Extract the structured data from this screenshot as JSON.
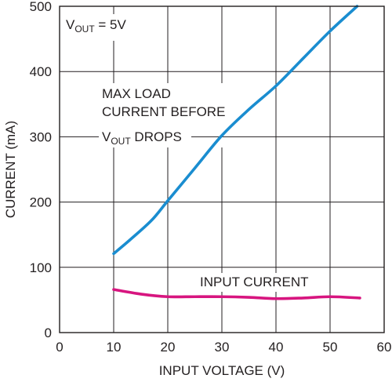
{
  "chart_data": {
    "type": "line",
    "xlabel": "INPUT VOLTAGE (V)",
    "ylabel": "CURRENT (mA)",
    "xlim": [
      0,
      60
    ],
    "ylim": [
      0,
      500
    ],
    "x_ticks": [
      "0",
      "10",
      "20",
      "30",
      "40",
      "50",
      "60"
    ],
    "y_ticks": [
      "0",
      "100",
      "200",
      "300",
      "400",
      "500"
    ],
    "grid": true,
    "annotations": {
      "vout_prefix": "V",
      "vout_sub": "OUT",
      "vout_suffix": " = 5V",
      "max_line1": "MAX LOAD",
      "max_line2": "CURRENT BEFORE",
      "max_line3_prefix": "V",
      "max_line3_sub": "OUT",
      "max_line3_suffix": " DROPS",
      "input_current": "INPUT CURRENT"
    },
    "series": [
      {
        "color": "#1a8dd0",
        "x": [
          10,
          13,
          17,
          20,
          25,
          30,
          35,
          40,
          45,
          50,
          55
        ],
        "y": [
          121,
          142,
          172,
          202,
          252,
          302,
          342,
          378,
          420,
          462,
          500
        ]
      },
      {
        "color": "#d7157f",
        "x": [
          10,
          15,
          20,
          25,
          30,
          35,
          40,
          45,
          50,
          55.5
        ],
        "y": [
          66,
          59,
          55,
          55,
          55,
          54,
          52,
          53,
          55,
          53
        ]
      }
    ]
  }
}
